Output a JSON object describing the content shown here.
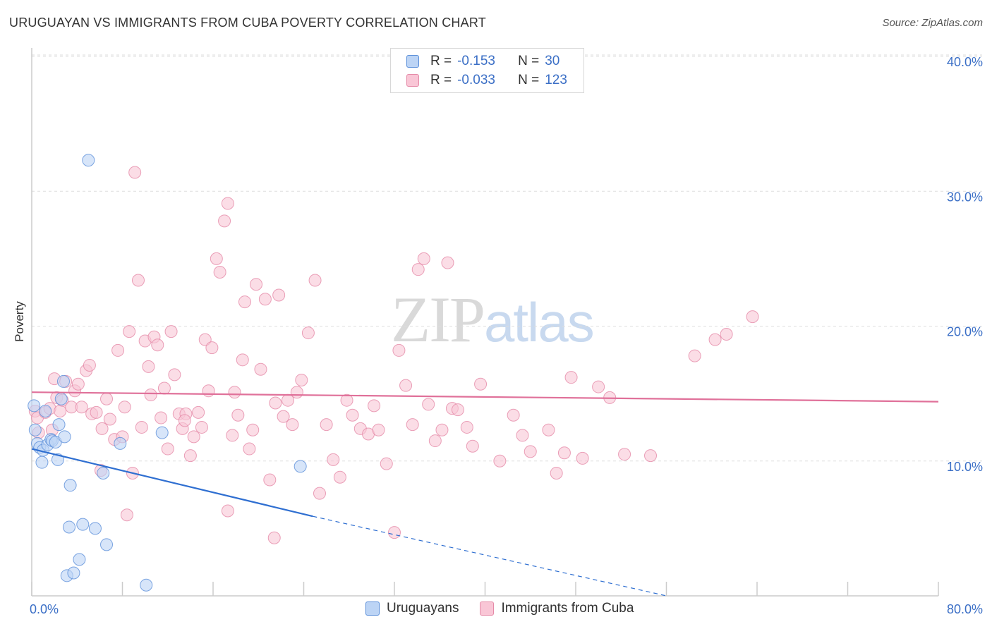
{
  "title": "URUGUAYAN VS IMMIGRANTS FROM CUBA POVERTY CORRELATION CHART",
  "source": "Source: ZipAtlas.com",
  "watermark": {
    "part1": "ZIP",
    "part2": "atlas"
  },
  "legend_top": {
    "rows": [
      {
        "r_label": "R =",
        "r_value": "-0.153",
        "n_label": "N =",
        "n_value": "30",
        "fill": "#bcd4f5",
        "stroke": "#5b8fd9"
      },
      {
        "r_label": "R =",
        "r_value": "-0.033",
        "n_label": "N =",
        "n_value": "123",
        "fill": "#f9c6d6",
        "stroke": "#e58aa8"
      }
    ]
  },
  "legend_bottom": [
    {
      "label": "Uruguayans",
      "fill": "#bcd4f5",
      "stroke": "#5b8fd9"
    },
    {
      "label": "Immigrants from Cuba",
      "fill": "#f9c6d6",
      "stroke": "#e58aa8"
    }
  ],
  "chart_data": {
    "type": "scatter",
    "title": "URUGUAYAN VS IMMIGRANTS FROM CUBA POVERTY CORRELATION CHART",
    "xlabel": "",
    "ylabel": "Poverty",
    "xlim": [
      0,
      80
    ],
    "ylim": [
      0,
      40
    ],
    "x_tick_labels": [
      "0.0%",
      "80.0%"
    ],
    "y_ticks": [
      10,
      20,
      30,
      40
    ],
    "y_tick_labels": [
      "10.0%",
      "20.0%",
      "30.0%",
      "40.0%"
    ],
    "grid": true,
    "series": [
      {
        "name": "Uruguayans",
        "color": "#5b8fd9",
        "fill": "#bcd4f5",
        "points": [
          [
            0.2,
            14.1
          ],
          [
            0.3,
            12.3
          ],
          [
            0.5,
            11.3
          ],
          [
            0.7,
            11.0
          ],
          [
            1.0,
            10.8
          ],
          [
            1.4,
            11.2
          ],
          [
            1.7,
            11.6
          ],
          [
            1.8,
            11.5
          ],
          [
            0.9,
            9.9
          ],
          [
            2.1,
            11.4
          ],
          [
            2.3,
            10.1
          ],
          [
            2.4,
            12.7
          ],
          [
            2.6,
            14.6
          ],
          [
            2.8,
            15.9
          ],
          [
            2.9,
            11.8
          ],
          [
            3.4,
            8.2
          ],
          [
            3.3,
            5.1
          ],
          [
            4.5,
            5.3
          ],
          [
            5.6,
            5.0
          ],
          [
            4.2,
            2.7
          ],
          [
            3.1,
            1.5
          ],
          [
            3.7,
            1.7
          ],
          [
            6.6,
            3.8
          ],
          [
            7.8,
            11.3
          ],
          [
            6.3,
            9.1
          ],
          [
            5.0,
            32.3
          ],
          [
            10.1,
            0.8
          ],
          [
            11.5,
            12.1
          ],
          [
            23.7,
            9.6
          ],
          [
            1.2,
            13.7
          ]
        ],
        "trend": {
          "x1": 0,
          "y1": 10.9,
          "x2_solid": 24.8,
          "y2_solid": 5.9,
          "x2_dash": 56,
          "y2_dash": 0
        }
      },
      {
        "name": "Immigrants from Cuba",
        "color": "#e58aa8",
        "fill": "#f9c6d6",
        "points": [
          [
            0.3,
            13.7
          ],
          [
            0.5,
            13.2
          ],
          [
            0.6,
            12.1
          ],
          [
            1.2,
            13.6
          ],
          [
            1.6,
            13.9
          ],
          [
            1.8,
            12.3
          ],
          [
            2.0,
            16.1
          ],
          [
            2.2,
            14.7
          ],
          [
            2.5,
            13.7
          ],
          [
            2.7,
            14.5
          ],
          [
            3.0,
            15.9
          ],
          [
            3.5,
            14.0
          ],
          [
            3.8,
            15.2
          ],
          [
            4.1,
            15.7
          ],
          [
            4.4,
            14.0
          ],
          [
            4.8,
            16.7
          ],
          [
            5.1,
            17.1
          ],
          [
            5.3,
            13.5
          ],
          [
            5.7,
            13.6
          ],
          [
            6.2,
            12.4
          ],
          [
            6.6,
            14.6
          ],
          [
            6.9,
            13.1
          ],
          [
            7.3,
            11.6
          ],
          [
            7.6,
            18.2
          ],
          [
            8.0,
            11.8
          ],
          [
            8.2,
            14.0
          ],
          [
            8.6,
            19.6
          ],
          [
            8.9,
            9.1
          ],
          [
            9.1,
            31.4
          ],
          [
            9.4,
            23.4
          ],
          [
            9.7,
            12.5
          ],
          [
            10.0,
            18.9
          ],
          [
            10.3,
            17.0
          ],
          [
            10.5,
            14.9
          ],
          [
            10.8,
            19.2
          ],
          [
            11.1,
            18.6
          ],
          [
            11.4,
            13.2
          ],
          [
            11.7,
            15.4
          ],
          [
            12.0,
            10.9
          ],
          [
            12.3,
            19.6
          ],
          [
            12.6,
            16.4
          ],
          [
            13.0,
            13.5
          ],
          [
            13.3,
            12.4
          ],
          [
            13.6,
            13.5
          ],
          [
            14.0,
            10.4
          ],
          [
            14.3,
            11.8
          ],
          [
            14.7,
            13.6
          ],
          [
            15.0,
            12.5
          ],
          [
            15.3,
            19.0
          ],
          [
            15.6,
            15.2
          ],
          [
            15.9,
            18.4
          ],
          [
            16.3,
            25.0
          ],
          [
            16.6,
            24.0
          ],
          [
            17.0,
            27.8
          ],
          [
            17.3,
            29.1
          ],
          [
            17.7,
            11.9
          ],
          [
            17.9,
            15.1
          ],
          [
            18.2,
            13.4
          ],
          [
            18.6,
            17.5
          ],
          [
            18.8,
            21.8
          ],
          [
            19.2,
            10.9
          ],
          [
            19.5,
            12.3
          ],
          [
            19.8,
            23.1
          ],
          [
            20.2,
            16.8
          ],
          [
            20.6,
            22.0
          ],
          [
            21.0,
            8.6
          ],
          [
            21.4,
            4.3
          ],
          [
            21.8,
            22.3
          ],
          [
            22.2,
            13.3
          ],
          [
            22.6,
            14.5
          ],
          [
            23.0,
            12.7
          ],
          [
            23.4,
            15.1
          ],
          [
            23.8,
            16.0
          ],
          [
            24.4,
            19.5
          ],
          [
            25.0,
            23.4
          ],
          [
            25.4,
            7.6
          ],
          [
            26.0,
            12.7
          ],
          [
            26.6,
            10.1
          ],
          [
            27.2,
            8.8
          ],
          [
            27.8,
            14.5
          ],
          [
            28.3,
            13.4
          ],
          [
            29.0,
            12.4
          ],
          [
            29.7,
            12.0
          ],
          [
            30.2,
            14.1
          ],
          [
            30.6,
            12.3
          ],
          [
            31.3,
            9.8
          ],
          [
            32.4,
            18.2
          ],
          [
            33.0,
            15.6
          ],
          [
            33.6,
            12.7
          ],
          [
            34.1,
            24.2
          ],
          [
            34.6,
            25.0
          ],
          [
            35.0,
            14.2
          ],
          [
            35.6,
            11.5
          ],
          [
            36.2,
            12.3
          ],
          [
            36.7,
            24.7
          ],
          [
            37.1,
            13.9
          ],
          [
            37.6,
            13.8
          ],
          [
            38.4,
            12.5
          ],
          [
            38.9,
            11.1
          ],
          [
            39.6,
            15.7
          ],
          [
            41.3,
            10.0
          ],
          [
            42.5,
            13.4
          ],
          [
            43.3,
            11.9
          ],
          [
            44.0,
            10.7
          ],
          [
            45.6,
            12.3
          ],
          [
            46.3,
            9.1
          ],
          [
            47.0,
            10.6
          ],
          [
            47.6,
            16.2
          ],
          [
            48.6,
            10.2
          ],
          [
            50.0,
            15.5
          ],
          [
            51.0,
            14.7
          ],
          [
            52.3,
            10.5
          ],
          [
            54.6,
            10.4
          ],
          [
            58.5,
            17.8
          ],
          [
            60.3,
            19.0
          ],
          [
            61.3,
            19.4
          ],
          [
            63.6,
            20.7
          ],
          [
            17.3,
            6.3
          ],
          [
            32.0,
            4.7
          ],
          [
            8.4,
            6.0
          ],
          [
            13.5,
            13.0
          ],
          [
            6.1,
            9.3
          ],
          [
            21.5,
            14.3
          ]
        ],
        "trend": {
          "x1": 0,
          "y1": 15.1,
          "x2_solid": 80,
          "y2_solid": 14.4
        }
      }
    ]
  }
}
